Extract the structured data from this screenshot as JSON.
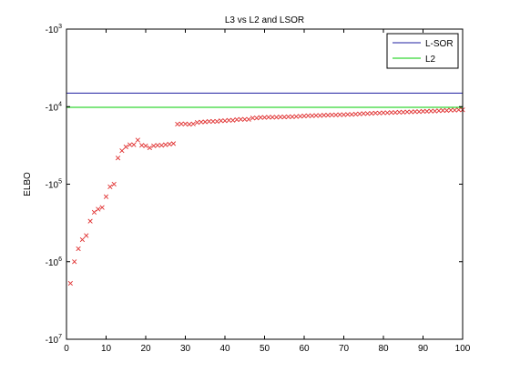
{
  "chart_data": {
    "type": "line",
    "title": "L3 vs L2 and LSOR",
    "xlabel": "",
    "ylabel": "ELBO",
    "xlim": [
      0,
      100
    ],
    "ylim_exponent": [
      3,
      7
    ],
    "y_scale": "log-negative",
    "x_ticks": [
      "0",
      "10",
      "20",
      "30",
      "40",
      "50",
      "60",
      "70",
      "80",
      "90",
      "100"
    ],
    "y_ticks": [
      {
        "base": "-10",
        "exp": "3"
      },
      {
        "base": "-10",
        "exp": "4"
      },
      {
        "base": "-10",
        "exp": "5"
      },
      {
        "base": "-10",
        "exp": "6"
      },
      {
        "base": "-10",
        "exp": "7"
      }
    ],
    "grid": false,
    "legend_position": "top-right",
    "series": [
      {
        "name": "L-SOR",
        "kind": "hline",
        "color": "#1f1fa0",
        "value": -6700
      },
      {
        "name": "L2",
        "kind": "hline",
        "color": "#00cc00",
        "value": -10200
      },
      {
        "name": "",
        "kind": "markers",
        "color": "#e03030",
        "marker": "x",
        "x": [
          1,
          2,
          3,
          4,
          5,
          6,
          7,
          8,
          9,
          10,
          11,
          12,
          13,
          14,
          15,
          16,
          17,
          18,
          19,
          20,
          21,
          22,
          23,
          24,
          25,
          26,
          27,
          28,
          29,
          30,
          31,
          32,
          33,
          34,
          35,
          36,
          37,
          38,
          39,
          40,
          41,
          42,
          43,
          44,
          45,
          46,
          47,
          48,
          49,
          50,
          51,
          52,
          53,
          54,
          55,
          56,
          57,
          58,
          59,
          60,
          61,
          62,
          63,
          64,
          65,
          66,
          67,
          68,
          69,
          70,
          71,
          72,
          73,
          74,
          75,
          76,
          77,
          78,
          79,
          80,
          81,
          82,
          83,
          84,
          85,
          86,
          87,
          88,
          89,
          90,
          91,
          92,
          93,
          94,
          95,
          96,
          97,
          98,
          99,
          100
        ],
        "y": [
          -1900000,
          -1000000,
          -680000,
          -520000,
          -460000,
          -300000,
          -230000,
          -210000,
          -200000,
          -145000,
          -108000,
          -100000,
          -46000,
          -37000,
          -33000,
          -31000,
          -31000,
          -27000,
          -31500,
          -32000,
          -34000,
          -32000,
          -31500,
          -31500,
          -31000,
          -30500,
          -30000,
          -16800,
          -16700,
          -16700,
          -16900,
          -16700,
          -16000,
          -15800,
          -15700,
          -15500,
          -15500,
          -15500,
          -15200,
          -15200,
          -15000,
          -15000,
          -14700,
          -14600,
          -14600,
          -14600,
          -14000,
          -14000,
          -13800,
          -13800,
          -13700,
          -13700,
          -13700,
          -13600,
          -13600,
          -13500,
          -13500,
          -13400,
          -13300,
          -13200,
          -13100,
          -13100,
          -13000,
          -13000,
          -12900,
          -12900,
          -12800,
          -12800,
          -12700,
          -12700,
          -12600,
          -12600,
          -12500,
          -12400,
          -12300,
          -12300,
          -12200,
          -12100,
          -12100,
          -12000,
          -12000,
          -11900,
          -11900,
          -11800,
          -11800,
          -11700,
          -11700,
          -11600,
          -11600,
          -11500,
          -11500,
          -11400,
          -11400,
          -11300,
          -11200,
          -11200,
          -11100,
          -11100,
          -11000,
          -11000
        ]
      }
    ]
  }
}
